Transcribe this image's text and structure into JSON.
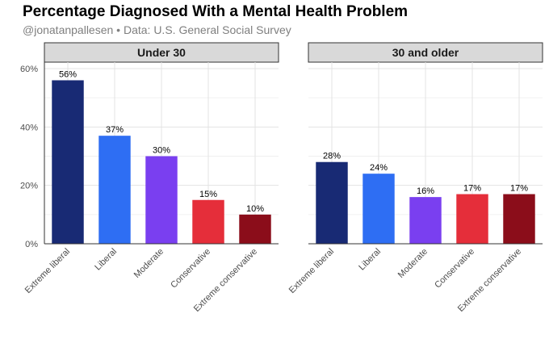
{
  "title": "Percentage Diagnosed With a Mental Health Problem",
  "subtitle": "@jonatanpallesen • Data: U.S. General Social Survey",
  "chart_data": {
    "type": "bar",
    "title": "Percentage Diagnosed With a Mental Health Problem",
    "subtitle": "@jonatanpallesen • Data: U.S. General Social Survey",
    "xlabel": "",
    "ylabel": "",
    "ylim": [
      0,
      60
    ],
    "yticks": [
      "0%",
      "20%",
      "40%",
      "60%"
    ],
    "grid": true,
    "categories": [
      "Extreme liberal",
      "Liberal",
      "Moderate",
      "Conservative",
      "Extreme conservative"
    ],
    "colors": [
      "#182a74",
      "#2e6ef3",
      "#7a3ff0",
      "#e52e3a",
      "#8b0d1a"
    ],
    "panels": [
      {
        "label": "Under 30",
        "values": [
          56,
          37,
          30,
          15,
          10
        ],
        "labels": [
          "56%",
          "37%",
          "30%",
          "15%",
          "10%"
        ]
      },
      {
        "label": "30 and older",
        "values": [
          28,
          24,
          16,
          17,
          17
        ],
        "labels": [
          "28%",
          "24%",
          "16%",
          "17%",
          "17%"
        ]
      }
    ]
  }
}
